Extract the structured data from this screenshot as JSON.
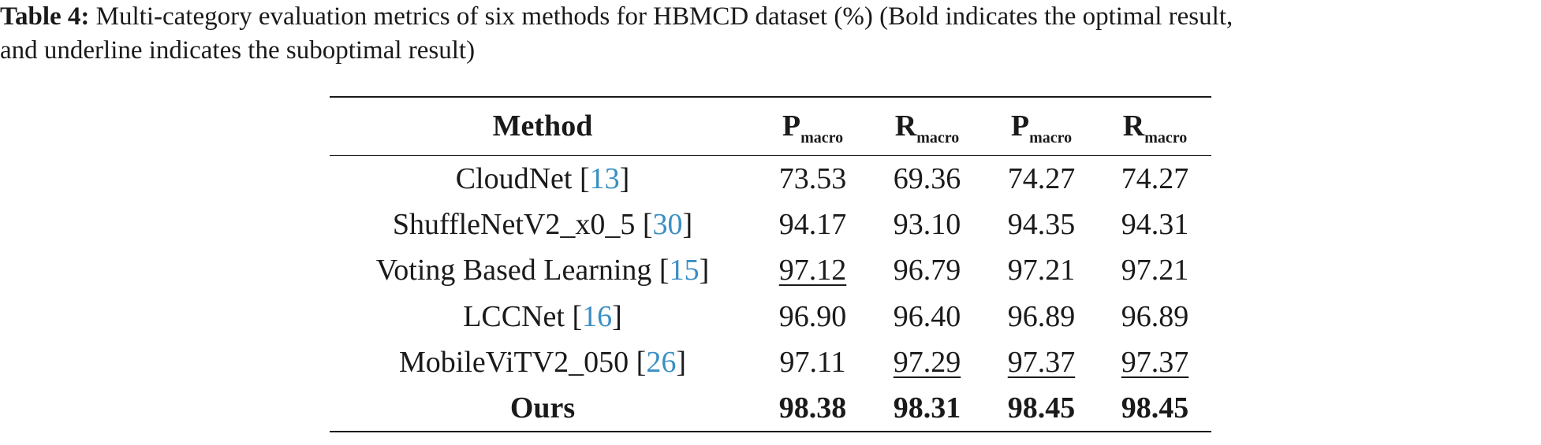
{
  "caption": {
    "label": "Table 4:",
    "text_line1": " Multi-category evaluation metrics of six methods for HBMCD dataset (%) (Bold indicates the optimal result,",
    "text_line2": "and underline indicates the suboptimal result)"
  },
  "table": {
    "headers": [
      {
        "main": "Method",
        "sub": ""
      },
      {
        "main": "P",
        "sub": "macro"
      },
      {
        "main": "R",
        "sub": "macro"
      },
      {
        "main": "P",
        "sub": "macro"
      },
      {
        "main": "R",
        "sub": "macro"
      }
    ],
    "rows": [
      {
        "method": "CloudNet [",
        "cite": "13",
        "close": "]",
        "values": [
          "73.53",
          "69.36",
          "74.27",
          "74.27"
        ]
      },
      {
        "method": "ShuffleNetV2_x0_5 [",
        "cite": "30",
        "close": "]",
        "values": [
          "94.17",
          "93.10",
          "94.35",
          "94.31"
        ]
      },
      {
        "method": "Voting Based Learning [",
        "cite": "15",
        "close": "]",
        "values": [
          "97.12",
          "96.79",
          "97.21",
          "97.21"
        ]
      },
      {
        "method": "LCCNet [",
        "cite": "16",
        "close": "]",
        "values": [
          "96.90",
          "96.40",
          "96.89",
          "96.89"
        ]
      },
      {
        "method": "MobileViTV2_050 [",
        "cite": "26",
        "close": "]",
        "values": [
          "97.11",
          "97.29",
          "97.37",
          "97.37"
        ]
      },
      {
        "method": "Ours",
        "cite": "",
        "close": "",
        "values": [
          "98.38",
          "98.31",
          "98.45",
          "98.45"
        ]
      }
    ]
  },
  "colors": {
    "citation": "#3a8fc4",
    "text": "#1a1a1a"
  }
}
